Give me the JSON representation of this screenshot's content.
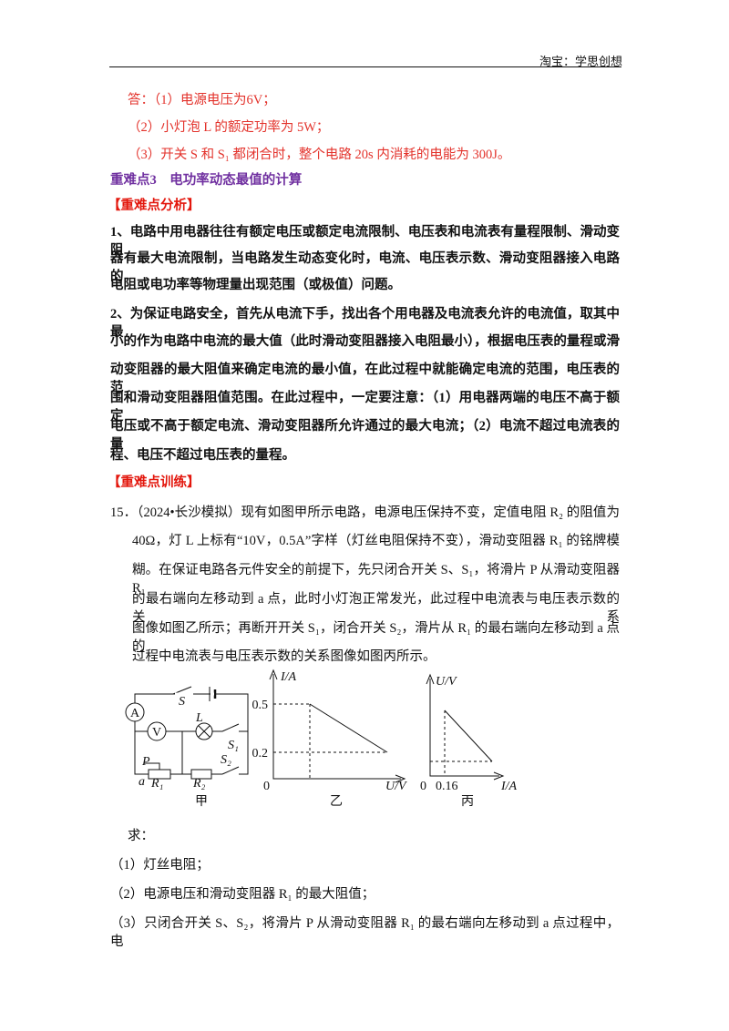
{
  "header": {
    "text": "淘宝：学思创想"
  },
  "answer": {
    "lines": [
      "答：（1）电源电压为6V；",
      "（2）小灯泡 L 的额定功率为 5W；",
      "（3）开关 S 和 S₁ 都闭合时，整个电路 20s 内消耗的电能为 300J。"
    ]
  },
  "section": {
    "title": "重难点3　电功率动态最值的计算",
    "analysis_heading": "【重难点分析】",
    "paragraphs": [
      [
        "1、电路中用电器往往有额定电压或额定电流限制、电压表和电流表有量程限制、滑动变阻",
        "器有最大电流限制，当电路发生动态变化时，电流、电压表示数、滑动变阻器接入电路的",
        "电阻或电功率等物理量出现范围（或极值）问题。"
      ],
      [
        "2、为保证电路安全，首先从电流下手，找出各个用电器及电流表允许的电流值，取其中最",
        "小的作为电路中电流的最大值（此时滑动变阻器接入电阻最小），根据电压表的量程或滑",
        "动变阻器的最大阻值来确定电流的最小值，在此过程中就能确定电流的范围，电压表的范",
        "围和滑动变阻器阻值范围。在此过程中，一定要注意：（1）用电器两端的电压不高于额定",
        "电压或不高于额定电流、滑动变阻器所允许通过的最大电流；（2）电流不超过电流表的量",
        "程、电压不超过电压表的量程。"
      ]
    ],
    "training_heading": "【重难点训练】"
  },
  "problem": {
    "lines": [
      "15．（2024•长沙模拟）现有如图甲所示电路，电源电压保持不变，定值电阻 R₂ 的阻值为",
      "40Ω，灯 L 上标有“10V，0.5A”字样（灯丝电阻保持不变），滑动变阻器 R₁ 的铭牌模",
      "糊。在保证电路各元件安全的前提下，先只闭合开关 S、S₁，将滑片 P 从滑动变阻器 R₁",
      "的最右端向左移动到 a 点，此时小灯泡正常发光，此过程中电流表与电压表示数的关系",
      "图像如图乙所示；再断开开关 S₁，闭合开关 S₂，滑片从 R₁ 的最右端向左移动到 a 点的",
      "过程中电流表与电压表示数的关系图像如图丙所示。"
    ],
    "figure_jia": {
      "labels": [
        "S",
        "A",
        "V",
        "L",
        "S₁",
        "P",
        "S₂",
        "a",
        "R₁",
        "R₂"
      ],
      "caption": "甲"
    },
    "figure_yi": {
      "y_axis": "I/A",
      "x_axis": "U/V",
      "origin": 0,
      "ticks": [
        0.5,
        0.2
      ],
      "caption": "乙"
    },
    "figure_bing": {
      "y_axis": "U/V",
      "x_axis": "I/A",
      "origin": 0,
      "ticks": [
        0.16
      ],
      "caption": "丙"
    },
    "ask": "求：",
    "questions": [
      "（1）灯丝电阻；",
      "（2）电源电压和滑动变阻器 R₁ 的最大阻值；",
      "（3）只闭合开关 S、S₂，将滑片 P 从滑动变阻器 R₁ 的最右端向左移动到 a 点过程中，电"
    ]
  }
}
